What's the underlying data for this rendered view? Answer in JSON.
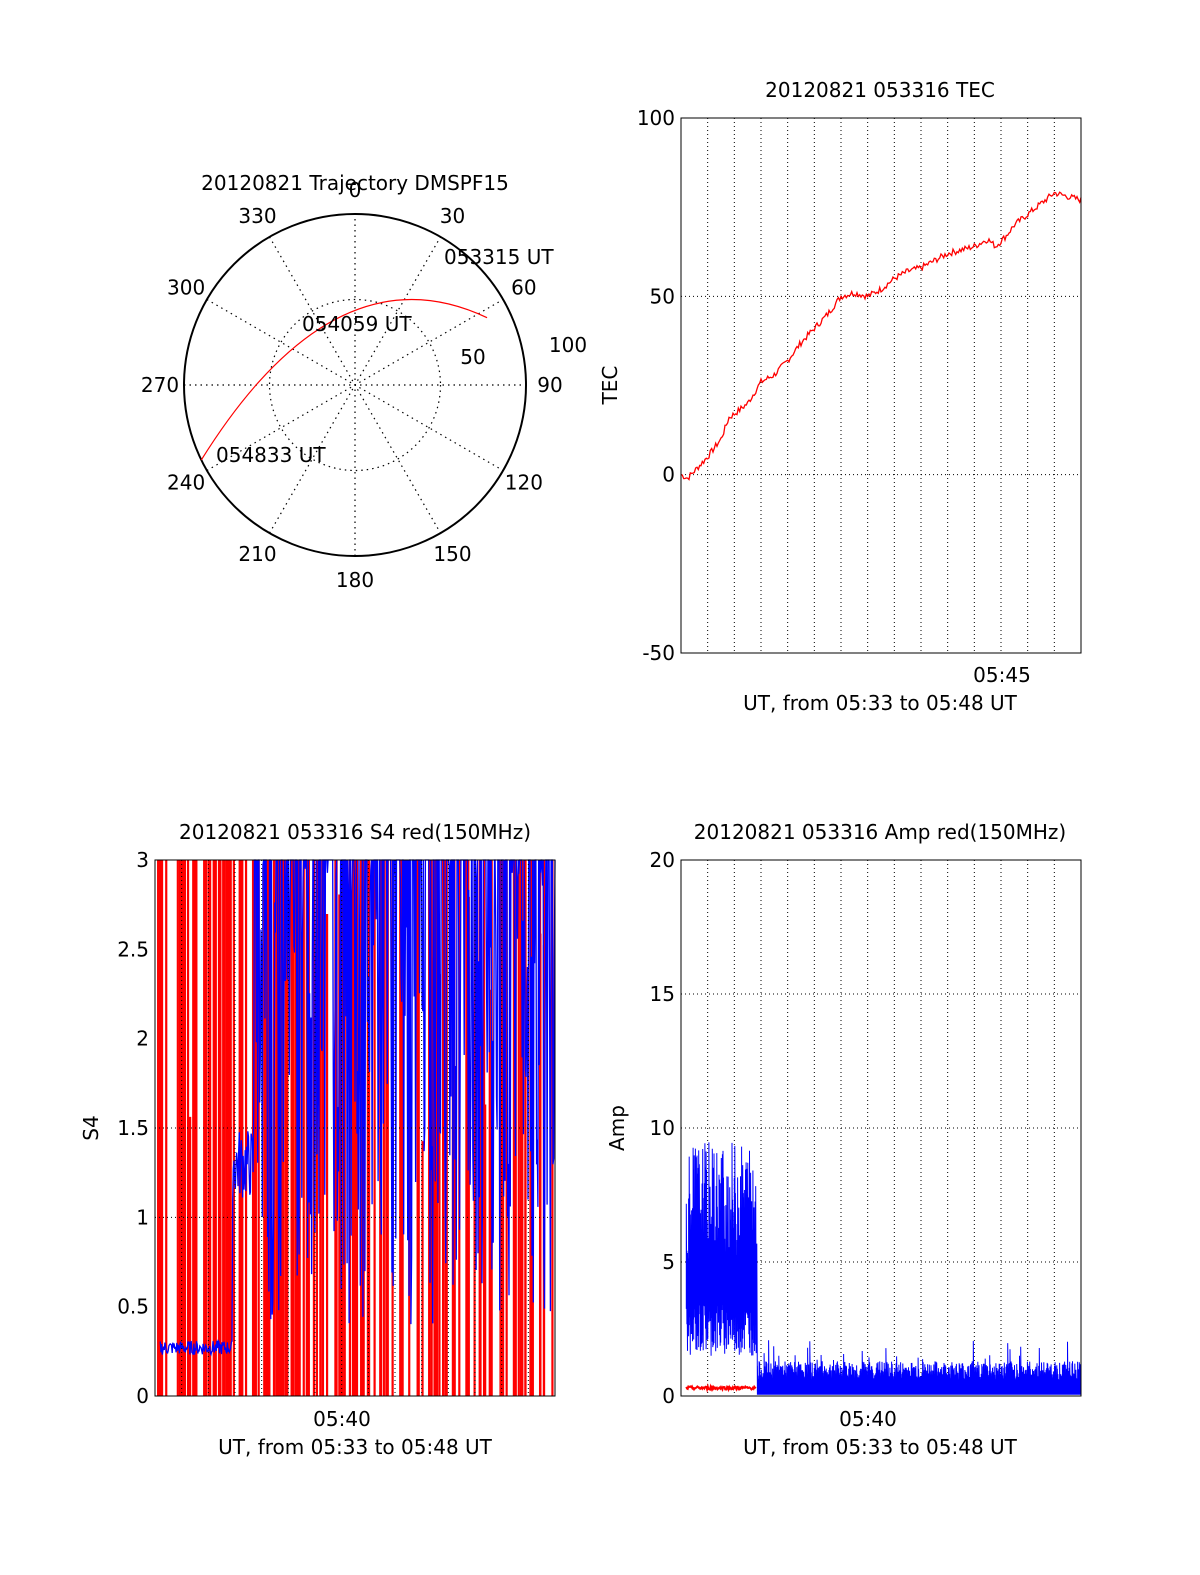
{
  "colors": {
    "red": "#ff0000",
    "blue": "#0000ff",
    "axis": "#000000"
  },
  "chart_data": [
    {
      "type": "polar",
      "title": "20120821 Trajectory DMSPF15",
      "azimuth_labels": [
        "0",
        "30",
        "60",
        "90",
        "120",
        "150",
        "180",
        "210",
        "240",
        "270",
        "300",
        "330"
      ],
      "radial_labels": [
        "50",
        "100"
      ],
      "trajectory": {
        "color": "#ff0000",
        "points": [
          {
            "az": 63,
            "zenith": 78
          },
          {
            "az": 0,
            "zenith": 55
          },
          {
            "az": 244,
            "zenith": 90
          }
        ],
        "labels": [
          "053315 UT",
          "054059 UT",
          "054833 UT"
        ]
      }
    },
    {
      "type": "line",
      "title": "20120821 053316 TEC",
      "ylabel": "TEC",
      "xlabel": "UT, from 05:33 to 05:48 UT",
      "ylim": [
        -50,
        100
      ],
      "yticks": [
        "100",
        "50",
        "0",
        "-50"
      ],
      "xtick_label": "05:45",
      "series": [
        {
          "color": "#ff0000",
          "x": [
            0,
            0.25,
            0.5,
            1,
            1.5,
            1.8,
            2,
            2.5,
            3,
            3.5,
            4,
            4.5,
            5,
            5.5,
            6,
            6.5,
            7,
            7.5,
            8,
            8.5,
            9,
            9.5,
            10,
            10.5,
            11,
            11.5,
            11.8,
            12.2,
            12.5,
            13,
            13.5,
            14,
            14.5,
            15
          ],
          "y": [
            0,
            -1,
            1,
            5,
            10,
            16,
            17,
            20,
            26,
            28,
            32,
            37,
            41,
            45,
            50,
            51,
            50,
            52,
            55,
            57,
            58,
            60,
            62,
            63,
            64,
            66,
            64,
            67,
            70,
            73,
            76,
            79,
            78,
            77
          ]
        }
      ]
    },
    {
      "type": "line",
      "title": "20120821 053316 S4 red(150MHz)",
      "ylabel": "S4",
      "xlabel": "UT, from 05:33 to 05:48 UT",
      "ylim": [
        0,
        3
      ],
      "yticks": [
        "3",
        "2.5",
        "2",
        "1.5",
        "1",
        "0.5",
        "0"
      ],
      "xtick_label": "05:40",
      "series": [
        {
          "color": "#ff0000",
          "description": "dense vertical spikes spanning 0 to 3"
        },
        {
          "color": "#0000ff",
          "x": [
            0.2,
            1,
            2,
            2.9,
            3,
            3.3,
            3.6,
            3.8,
            4,
            5,
            7,
            8,
            10,
            12,
            14,
            15
          ],
          "y": [
            0.25,
            0.27,
            0.29,
            0.3,
            1.2,
            1.35,
            1.4,
            2.2,
            2.8,
            2.6,
            2.4,
            2.7,
            2.5,
            2.7,
            2.6,
            2.8
          ]
        }
      ]
    },
    {
      "type": "line",
      "title": "20120821 053316 Amp red(150MHz)",
      "ylabel": "Amp",
      "xlabel": "UT, from 05:33 to 05:48 UT",
      "ylim": [
        0,
        20
      ],
      "yticks": [
        "20",
        "15",
        "10",
        "5",
        "0"
      ],
      "xtick_label": "05:40",
      "series": [
        {
          "color": "#0000ff",
          "x": [
            0.2,
            1,
            2,
            2.8,
            2.9,
            5,
            7,
            10,
            12,
            15
          ],
          "y": [
            6,
            6.5,
            6,
            5,
            1.2,
            0.8,
            1.0,
            0.9,
            0.9,
            1.0
          ]
        },
        {
          "color": "#ff0000",
          "x": [
            0.2,
            1,
            2,
            2.8
          ],
          "y": [
            0.3,
            0.3,
            0.3,
            0.3
          ]
        }
      ]
    }
  ]
}
